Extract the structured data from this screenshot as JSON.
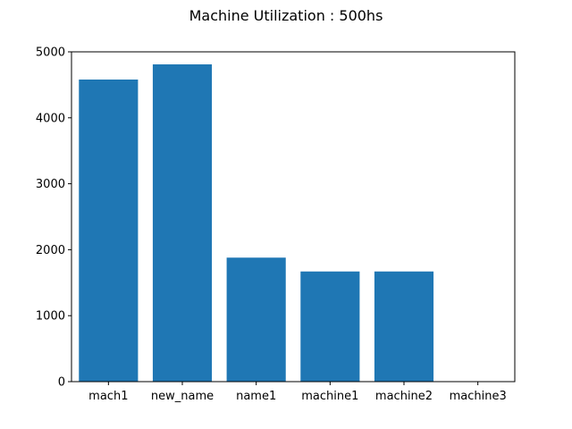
{
  "chart_data": {
    "type": "bar",
    "title": "Machine Utilization : 500hs",
    "xlabel": "",
    "ylabel": "",
    "categories": [
      "mach1",
      "new_name",
      "name1",
      "machine1",
      "machine2",
      "machine3"
    ],
    "values": [
      4580,
      4810,
      1880,
      1670,
      1670,
      0
    ],
    "ylim": [
      0,
      5000
    ],
    "yticks": [
      0,
      1000,
      2000,
      3000,
      4000,
      5000
    ],
    "grid": false,
    "legend": "none",
    "bar_color": "#1f77b4"
  }
}
